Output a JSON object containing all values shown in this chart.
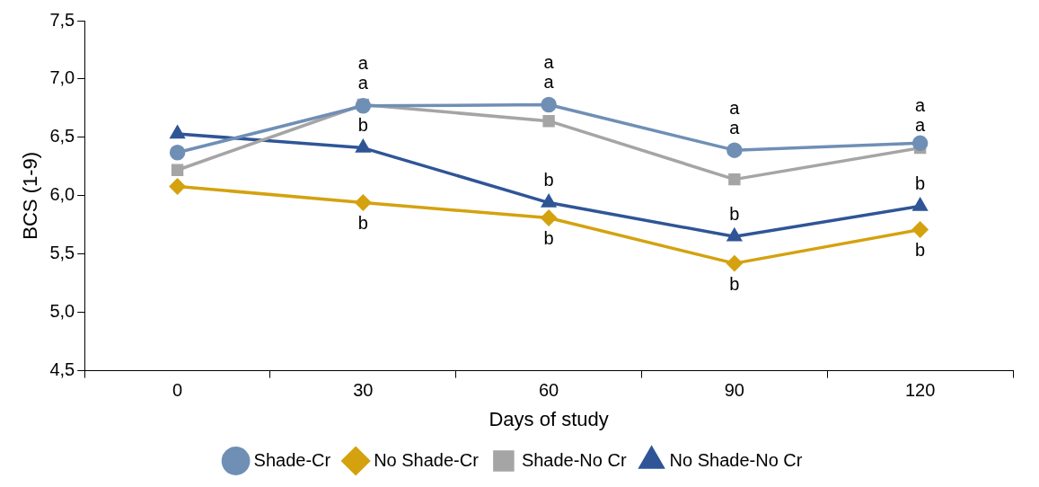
{
  "chart_data": {
    "type": "line",
    "xlabel": "Days of study",
    "ylabel": "BCS (1-9)",
    "categories": [
      "0",
      "30",
      "60",
      "90",
      "120"
    ],
    "series": [
      {
        "name": "Shade-Cr",
        "color": "#6f8fb5",
        "marker": "circle",
        "values": [
          6.37,
          6.77,
          6.78,
          6.39,
          6.45
        ],
        "value_labels": [
          null,
          "a",
          "a",
          "a",
          "a"
        ]
      },
      {
        "name": "No Shade-Cr",
        "color": "#d4a20f",
        "marker": "diamond",
        "values": [
          6.08,
          5.94,
          5.81,
          5.42,
          5.71
        ],
        "value_labels": [
          null,
          "b",
          "b",
          "b",
          "b"
        ]
      },
      {
        "name": "Shade-No Cr",
        "color": "#a5a5a5",
        "marker": "square",
        "values": [
          6.22,
          6.78,
          6.64,
          6.14,
          6.41
        ],
        "value_labels": [
          null,
          "a",
          "a",
          "a",
          "a"
        ]
      },
      {
        "name": "No Shade-No Cr",
        "color": "#2f5597",
        "marker": "triangle",
        "values": [
          6.53,
          6.41,
          5.94,
          5.65,
          5.91
        ],
        "value_labels": [
          null,
          "b",
          "b",
          "b",
          "b"
        ]
      }
    ],
    "ylim": [
      4.5,
      7.5
    ],
    "yticks": [
      {
        "value": 4.5,
        "label": "4,5"
      },
      {
        "value": 5,
        "label": "5,0"
      },
      {
        "value": 5.5,
        "label": "5,5"
      },
      {
        "value": 6,
        "label": "6,0"
      },
      {
        "value": 6.5,
        "label": "6,5"
      },
      {
        "value": 7,
        "label": "7,0"
      },
      {
        "value": 7.5,
        "label": "7,5"
      }
    ],
    "grid": false,
    "legend": "bottom",
    "line_style": "solid"
  }
}
